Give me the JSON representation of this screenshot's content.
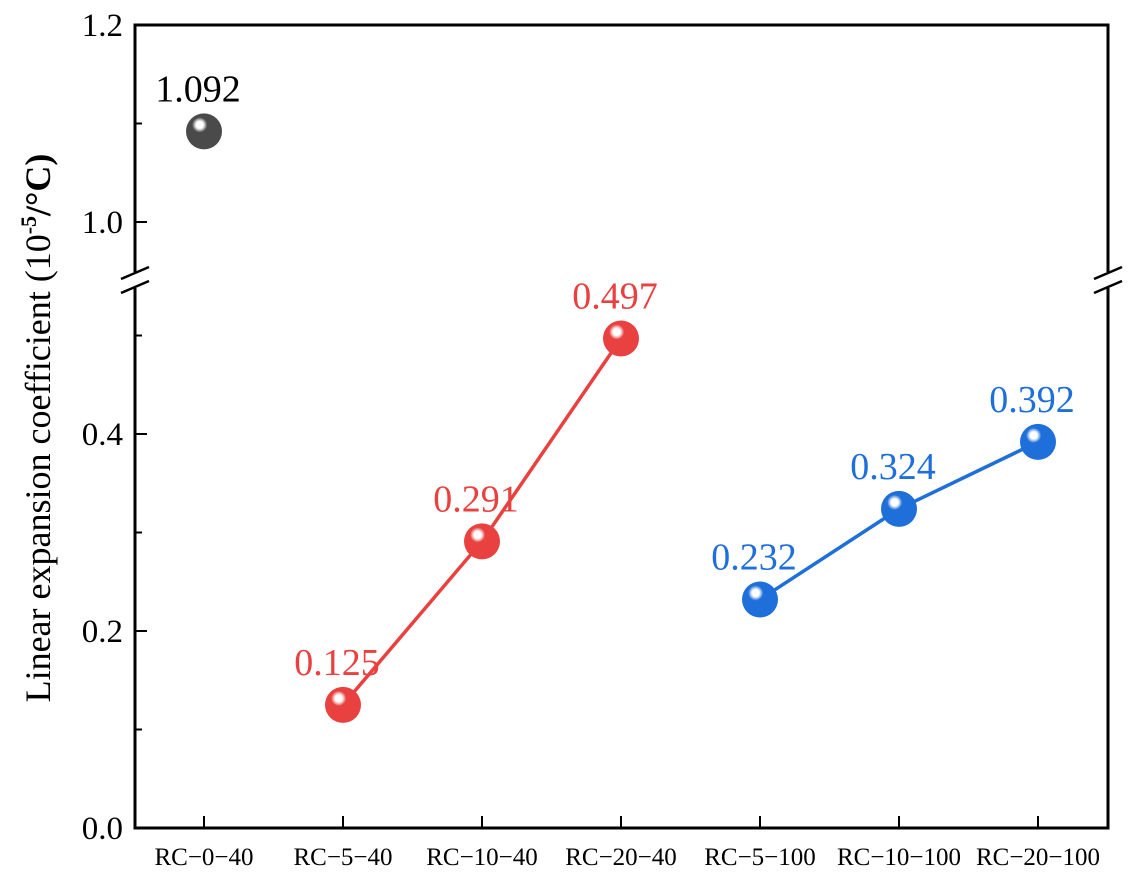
{
  "chart_data": {
    "type": "scatter",
    "ylabel_main": "Linear expansion coefficient (10",
    "ylabel_sup": "-5",
    "ylabel_end": "/°C)",
    "categories": [
      "RC−0−40",
      "RC−5−40",
      "RC−10−40",
      "RC−20−40",
      "RC−5−100",
      "RC−10−100",
      "RC−20−100"
    ],
    "y_ticks": [
      "0.0",
      "0.2",
      "0.4",
      "1.0",
      "1.2"
    ],
    "ylim_lower": [
      0.0,
      0.55
    ],
    "ylim_upper": [
      0.955,
      1.2
    ],
    "axis_break": true,
    "series": [
      {
        "color": "#4a4a4a",
        "points": [
          {
            "cat": 0,
            "y": 1.092,
            "label": "1.092"
          }
        ],
        "connected": false
      },
      {
        "color": "#e8413f",
        "points": [
          {
            "cat": 1,
            "y": 0.125,
            "label": "0.125"
          },
          {
            "cat": 2,
            "y": 0.291,
            "label": "0.291"
          },
          {
            "cat": 3,
            "y": 0.497,
            "label": "0.497"
          }
        ],
        "connected": true
      },
      {
        "color": "#1e6fd9",
        "points": [
          {
            "cat": 4,
            "y": 0.232,
            "label": "0.232"
          },
          {
            "cat": 5,
            "y": 0.324,
            "label": "0.324"
          },
          {
            "cat": 6,
            "y": 0.392,
            "label": "0.392"
          }
        ],
        "connected": true
      }
    ]
  }
}
